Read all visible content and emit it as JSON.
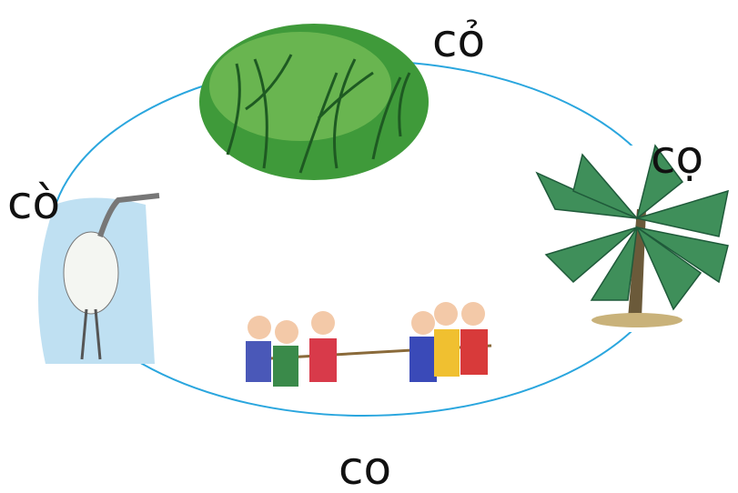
{
  "labels": {
    "top": "cỏ",
    "right": "cọ",
    "left": "cò",
    "bottom": "co"
  }
}
